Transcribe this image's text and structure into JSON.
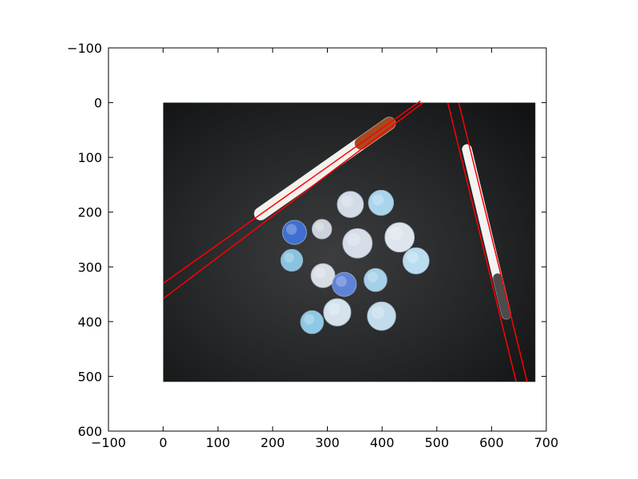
{
  "chart_data": {
    "type": "image-plot",
    "title": "",
    "xlabel": "",
    "ylabel": "",
    "xlim": [
      -100,
      700
    ],
    "ylim": [
      600,
      -100
    ],
    "x_ticks": [
      -100,
      0,
      100,
      200,
      300,
      400,
      500,
      600,
      700
    ],
    "y_ticks": [
      -100,
      0,
      100,
      200,
      300,
      400,
      500,
      600
    ],
    "x_tick_labels": [
      "−100",
      "0",
      "100",
      "200",
      "300",
      "400",
      "500",
      "600",
      "700"
    ],
    "y_tick_labels": [
      "−100",
      "0",
      "100",
      "200",
      "300",
      "400",
      "500",
      "600"
    ],
    "grid": false,
    "image": {
      "content": "photo of coins and two pens on a black surface",
      "extent": {
        "x": [
          0,
          680
        ],
        "y": [
          0,
          510
        ]
      }
    },
    "lines": [
      {
        "name": "pen1-upper-edge",
        "color": "#ff0000",
        "x": [
          0,
          470
        ],
        "y": [
          330,
          -3
        ]
      },
      {
        "name": "pen1-lower-edge",
        "color": "#ff0000",
        "x": [
          0,
          475
        ],
        "y": [
          358,
          0
        ]
      },
      {
        "name": "pen2-left-edge",
        "color": "#ff0000",
        "x": [
          520,
          645
        ],
        "y": [
          0,
          510
        ]
      },
      {
        "name": "pen2-right-edge",
        "color": "#ff0000",
        "x": [
          540,
          665
        ],
        "y": [
          0,
          510
        ]
      }
    ],
    "coins": [
      {
        "x": 342,
        "y": 186,
        "r": 24,
        "color": "#d2dbe6"
      },
      {
        "x": 398,
        "y": 183,
        "r": 23,
        "color": "#a9d4ee"
      },
      {
        "x": 240,
        "y": 237,
        "r": 22,
        "color": "#3f6fd1"
      },
      {
        "x": 290,
        "y": 231,
        "r": 18,
        "color": "#cdd3dc"
      },
      {
        "x": 355,
        "y": 257,
        "r": 27,
        "color": "#d6dde8"
      },
      {
        "x": 432,
        "y": 246,
        "r": 27,
        "color": "#dfe5ec"
      },
      {
        "x": 235,
        "y": 288,
        "r": 20,
        "color": "#88c3e0"
      },
      {
        "x": 292,
        "y": 316,
        "r": 22,
        "color": "#d9dde4"
      },
      {
        "x": 331,
        "y": 332,
        "r": 22,
        "color": "#5f83d8"
      },
      {
        "x": 388,
        "y": 324,
        "r": 21,
        "color": "#a4d0e8"
      },
      {
        "x": 462,
        "y": 289,
        "r": 24,
        "color": "#b9dcef"
      },
      {
        "x": 318,
        "y": 383,
        "r": 25,
        "color": "#d5e2ec"
      },
      {
        "x": 272,
        "y": 401,
        "r": 21,
        "color": "#8ec8e4"
      },
      {
        "x": 399,
        "y": 390,
        "r": 26,
        "color": "#c2dcec"
      }
    ],
    "pens": [
      {
        "name": "pen-1",
        "from": [
          178,
          203
        ],
        "to": [
          413,
          38
        ],
        "width": 24,
        "body_color": "#f4f2ee",
        "cap_color": "#a54a22"
      },
      {
        "name": "pen-2",
        "from": [
          555,
          85
        ],
        "to": [
          627,
          387
        ],
        "width": 18,
        "body_color": "#f3f3f3",
        "cap_color": "#4c4c4c"
      }
    ]
  }
}
